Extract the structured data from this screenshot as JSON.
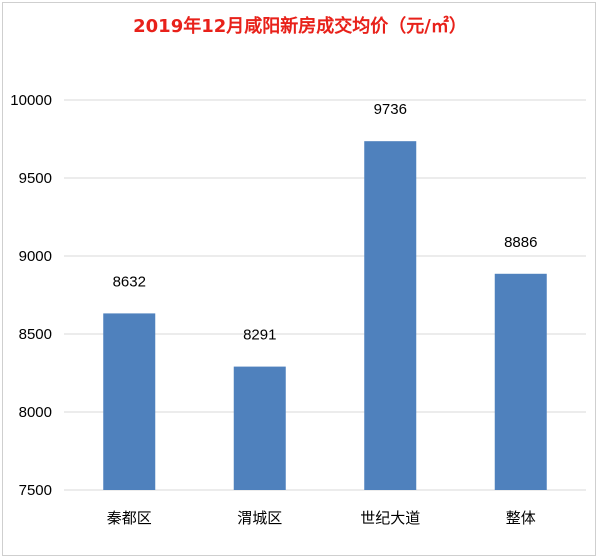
{
  "chart_data": {
    "type": "bar",
    "title": "2019年12月咸阳新房成交均价（元/㎡）",
    "categories": [
      "秦都区",
      "渭城区",
      "世纪大道",
      "整体"
    ],
    "values": [
      8632,
      8291,
      9736,
      8886
    ],
    "data_labels": [
      "8632",
      "8291",
      "9736",
      "8886"
    ],
    "ylim": [
      7500,
      10000
    ],
    "yticks": [
      7500,
      8000,
      8500,
      9000,
      9500,
      10000
    ],
    "xlabel": "",
    "ylabel": "",
    "grid": true,
    "legend": "none",
    "bar_color": "#4f81bd",
    "grid_color": "#d9d9d9",
    "title_color": "#e8211a"
  }
}
